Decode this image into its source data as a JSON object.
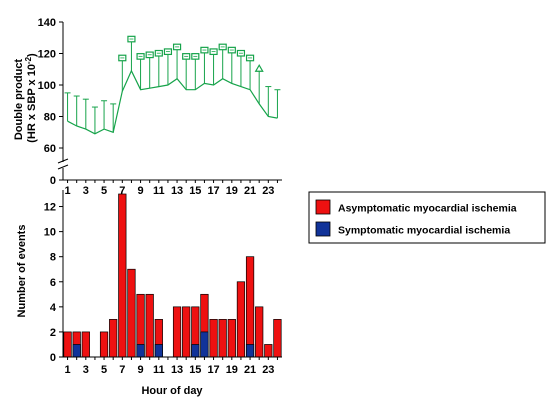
{
  "chart_data": [
    {
      "type": "line",
      "ylabel_line1": "Double product",
      "ylabel_line2": "(HR x SBP x 10",
      "ylabel_sup": "-2",
      "ylabel_close": ")",
      "ylim": [
        60,
        140
      ],
      "axis_break": true,
      "yticks": [
        60,
        80,
        100,
        120,
        140
      ],
      "ytick_zero": "0",
      "x": [
        1,
        2,
        3,
        4,
        5,
        6,
        7,
        8,
        9,
        10,
        11,
        12,
        13,
        14,
        15,
        16,
        17,
        18,
        19,
        20,
        21,
        22,
        23,
        24
      ],
      "xticks": [
        1,
        3,
        5,
        7,
        9,
        11,
        13,
        15,
        17,
        19,
        21,
        23
      ],
      "series": [
        {
          "values": [
            77,
            74,
            72,
            69,
            72,
            70,
            96,
            109,
            97,
            98,
            99,
            100,
            104,
            97,
            97,
            101,
            100,
            104,
            101,
            99,
            97,
            88,
            80,
            79
          ],
          "kind": "mean"
        },
        {
          "values": [
            95,
            93,
            91,
            86,
            90,
            88,
            117,
            129,
            118,
            119,
            120,
            121,
            124,
            118,
            118,
            122,
            121,
            124,
            122,
            120,
            117,
            110,
            99,
            97
          ],
          "kind": "upper-error",
          "markers": [
            "none",
            "none",
            "none",
            "none",
            "none",
            "none",
            "square",
            "square",
            "square",
            "square",
            "square",
            "square",
            "square",
            "square",
            "square",
            "square",
            "square",
            "square",
            "square",
            "square",
            "square",
            "triangle",
            "none",
            "none"
          ]
        }
      ]
    },
    {
      "type": "bar",
      "ylabel": "Number of events",
      "xlabel": "Hour of day",
      "ylim": [
        0,
        13
      ],
      "yticks": [
        0,
        2,
        4,
        6,
        8,
        10,
        12
      ],
      "categories": [
        1,
        2,
        3,
        4,
        5,
        6,
        7,
        8,
        9,
        10,
        11,
        12,
        13,
        14,
        15,
        16,
        17,
        18,
        19,
        20,
        21,
        22,
        23,
        24
      ],
      "xticks": [
        1,
        3,
        5,
        7,
        9,
        11,
        13,
        15,
        17,
        19,
        21,
        23
      ],
      "series": [
        {
          "name": "Asymptomatic myocardial ischemia",
          "color": "#ee1111",
          "values": [
            2,
            2,
            2,
            0,
            2,
            3,
            13,
            7,
            5,
            5,
            3,
            0,
            4,
            4,
            4,
            5,
            3,
            3,
            3,
            6,
            8,
            4,
            1,
            3
          ]
        },
        {
          "name": "Symptomatic myocardial ischemia",
          "color": "#113399",
          "values": [
            0,
            1,
            0,
            0,
            0,
            0,
            0,
            0,
            1,
            0,
            1,
            0,
            0,
            0,
            1,
            2,
            0,
            0,
            0,
            0,
            1,
            0,
            0,
            0
          ]
        }
      ],
      "legend": "right"
    }
  ]
}
